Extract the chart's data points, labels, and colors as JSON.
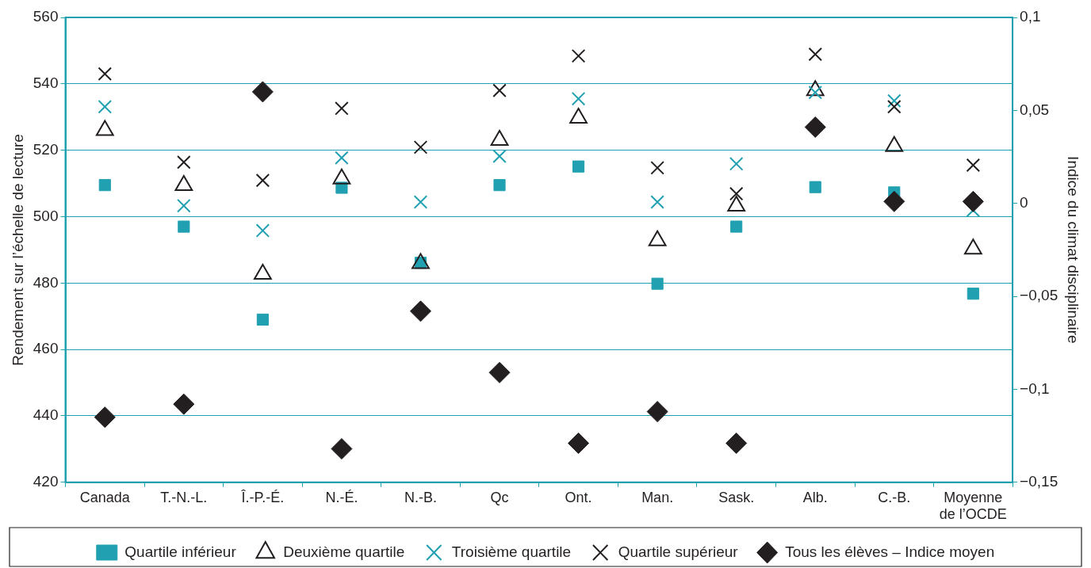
{
  "chart_data": {
    "type": "scatter",
    "categories": [
      "Canada",
      "T.-N.-L.",
      "Î.-P.-É.",
      "N.-É.",
      "N.-B.",
      "Qc",
      "Ont.",
      "Man.",
      "Sask.",
      "Alb.",
      "C.-B.",
      "Moyenne de l’OCDE"
    ],
    "series": [
      {
        "name": "Quartile inférieur",
        "color": "#20a0b0",
        "marker": "square",
        "values": [
          509.5,
          497,
          469,
          508.7,
          486.1,
          509.5,
          515.1,
          479.8,
          497,
          508.9,
          507.3,
          476.8
        ]
      },
      {
        "name": "Deuxième quartile",
        "color": "#231f20",
        "marker": "triangle",
        "values": [
          526,
          509.4,
          482.7,
          511.4,
          485.9,
          523,
          529.7,
          492.8,
          503.2,
          538,
          521.2,
          490.3
        ]
      },
      {
        "name": "Troisième quartile",
        "color": "#20a0b0",
        "marker": "cross",
        "values": [
          533.1,
          503.3,
          495.8,
          517.7,
          504.4,
          518.2,
          535.5,
          504.4,
          515.9,
          537.4,
          534.9,
          501.9
        ]
      },
      {
        "name": "Quartile supérieur",
        "color": "#231f20",
        "marker": "cross",
        "values": [
          543,
          516.4,
          510.9,
          532.6,
          520.9,
          538,
          548.4,
          514.7,
          506.9,
          548.9,
          533.1,
          515.5
        ]
      },
      {
        "name": "Tous les élèves – Indice moyen",
        "color": "#231f20",
        "marker": "diamond",
        "axis": "y2",
        "values": [
          -0.115,
          -0.108,
          0.06,
          -0.132,
          -0.058,
          -0.091,
          -0.129,
          -0.112,
          -0.129,
          0.041,
          0.001,
          0.001
        ]
      }
    ],
    "ylabel": "Rendement sur l’échelle de lecture",
    "y2label": "Indice du climat disciplinaire",
    "ylim": [
      420,
      560
    ],
    "yticks": [
      420,
      440,
      460,
      480,
      500,
      520,
      540,
      560
    ],
    "y2lim": [
      -0.15,
      0.1
    ],
    "y2ticks": [
      {
        "value": -0.15,
        "label": "−0,15"
      },
      {
        "value": -0.1,
        "label": "−0,1"
      },
      {
        "value": -0.05,
        "label": "−0,05"
      },
      {
        "value": 0,
        "label": "0"
      },
      {
        "value": 0.05,
        "label": "0,05"
      },
      {
        "value": 0.1,
        "label": "0,1"
      }
    ],
    "grid": "y",
    "legend": "bottom"
  }
}
